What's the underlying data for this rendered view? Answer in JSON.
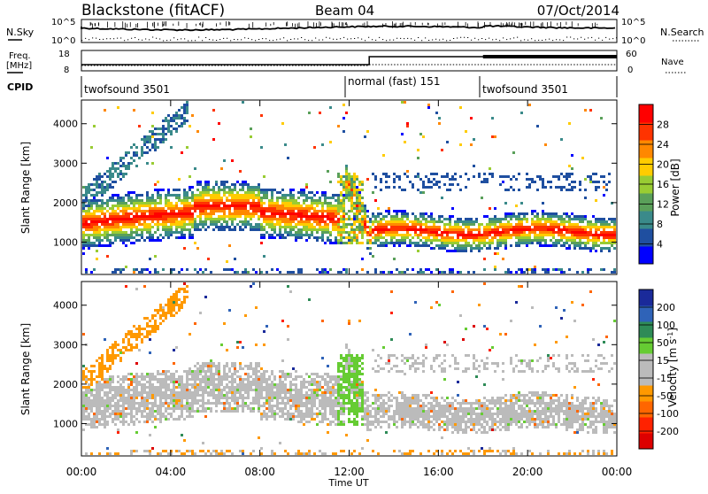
{
  "header": {
    "station": "Blackstone (fitACF)",
    "beam": "Beam 04",
    "date": "07/Oct/2014"
  },
  "noise_panel": {
    "left_label": "N.Sky",
    "right_label": "N.Search",
    "left_ticks": [
      "10^5",
      "10^0"
    ],
    "right_ticks": [
      "10^5",
      "10^0"
    ]
  },
  "freq_panel": {
    "left_label_line1": "Freq.",
    "left_label_line2": "[MHz]",
    "right_label": "Nave",
    "left_ticks": [
      "18",
      "8"
    ],
    "right_ticks": [
      "60",
      "0"
    ]
  },
  "cpid_panel": {
    "label": "CPID",
    "modes": [
      {
        "name": "twofsound 3501",
        "start_hour": 0,
        "end_hour": 12.9
      },
      {
        "name": "normal (fast) 151",
        "start_hour": 12.9,
        "end_hour": 18
      },
      {
        "name": "twofsound 3501",
        "start_hour": 18,
        "end_hour": 24
      }
    ]
  },
  "colors": {
    "power_scale": [
      "#0000ff",
      "#1f4fa0",
      "#3a8a8a",
      "#5aa05a",
      "#99cc33",
      "#ffcc00",
      "#ff8800",
      "#ff3300",
      "#ff0000"
    ],
    "velocity_scale": [
      "#1a2a9a",
      "#2f63b8",
      "#2e8b57",
      "#66cc33",
      "#bbbbbb",
      "#bbbbbb",
      "#ff9900",
      "#ff6600",
      "#ff2200",
      "#dd0000"
    ]
  },
  "chart_data": [
    {
      "type": "heatmap",
      "title": "Power",
      "ylabel": "Slant Range [km]",
      "xlabel": "Time UT",
      "ylim": [
        180,
        4600
      ],
      "yticks": [
        "1000",
        "2000",
        "3000",
        "4000"
      ],
      "colorbar_label": "Power [dB]",
      "colorbar_ticks": [
        "4",
        "8",
        "12",
        "16",
        "20",
        "24",
        "28"
      ],
      "features": [
        {
          "name": "main F-region echo band",
          "start_hour": 0,
          "end_hour": 11.8,
          "range_km": [
            1000,
            2300
          ],
          "peak_db": 28
        },
        {
          "name": "post-transition band",
          "start_hour": 13,
          "end_hour": 24,
          "range_km": [
            900,
            1700
          ],
          "peak_db": 28
        },
        {
          "name": "early-morning rising arc",
          "start_hour": 0,
          "end_hour": 4.5,
          "range_km": [
            2000,
            4300
          ],
          "peak_db": 10
        }
      ]
    },
    {
      "type": "heatmap",
      "title": "Velocity",
      "ylabel": "Slant Range [km]",
      "xlabel": "Time UT",
      "ylim": [
        180,
        4600
      ],
      "yticks": [
        "1000",
        "2000",
        "3000",
        "4000"
      ],
      "colorbar_label": "Velocity [m s^-1]",
      "colorbar_ticks": [
        "200",
        "100",
        "50",
        "15",
        "-15",
        "-50",
        "-100",
        "-200"
      ],
      "xticks": [
        "00:00",
        "04:00",
        "08:00",
        "12:00",
        "16:00",
        "20:00",
        "00:00"
      ],
      "features": [
        {
          "name": "ground scatter band",
          "start_hour": 0,
          "end_hour": 24,
          "range_km": [
            1000,
            2400
          ],
          "velocity_ms": 0
        },
        {
          "name": "green receding streak near noon",
          "start_hour": 11.5,
          "end_hour": 12.5,
          "range_km": [
            1000,
            2500
          ],
          "velocity_ms": 50
        },
        {
          "name": "orange approaching arc early",
          "start_hour": 0,
          "end_hour": 4.5,
          "range_km": [
            2000,
            4300
          ],
          "velocity_ms": -50
        }
      ]
    }
  ]
}
